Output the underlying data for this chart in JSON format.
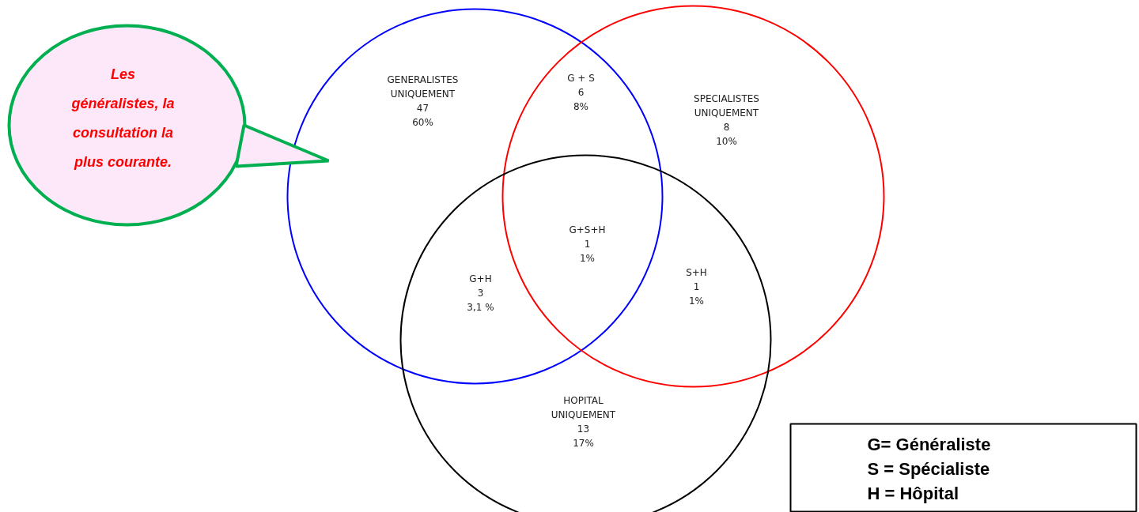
{
  "chart_data": {
    "type": "other",
    "categories": [
      "GENERALISTES\nUNIQUEMENT",
      "G + S",
      "SPECIALISTES\nUNIQUEMENT",
      "G+S+H",
      "G+H",
      "S+H",
      "HOPITAL\nUNIQUEMENT"
    ],
    "series": [
      {
        "values": [
          47,
          6,
          8,
          1,
          3,
          1,
          13
        ]
      },
      {
        "values": [
          60,
          8,
          10,
          1,
          3.1,
          1,
          17
        ],
        "value_labels": [
          "60%",
          "8%",
          "10%",
          "1%",
          "3,1 %",
          "1%",
          "17%"
        ]
      }
    ],
    "data_labels": true,
    "annotations": [
      "Les\ngénéralistes, la\nconsultation la\nplus courante.",
      "G= Généraliste\nS = Spécialiste\nH = Hôpital"
    ]
  }
}
